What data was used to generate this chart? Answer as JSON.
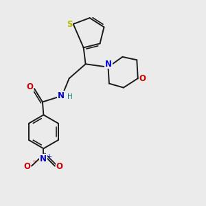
{
  "background_color": "#ebebeb",
  "bond_color": "#1a1a1a",
  "S_color": "#b8b800",
  "N_color": "#0000cc",
  "O_color": "#cc0000",
  "figsize": [
    3.0,
    3.0
  ],
  "dpi": 100,
  "xlim": [
    0,
    10
  ],
  "ylim": [
    0,
    10
  ]
}
